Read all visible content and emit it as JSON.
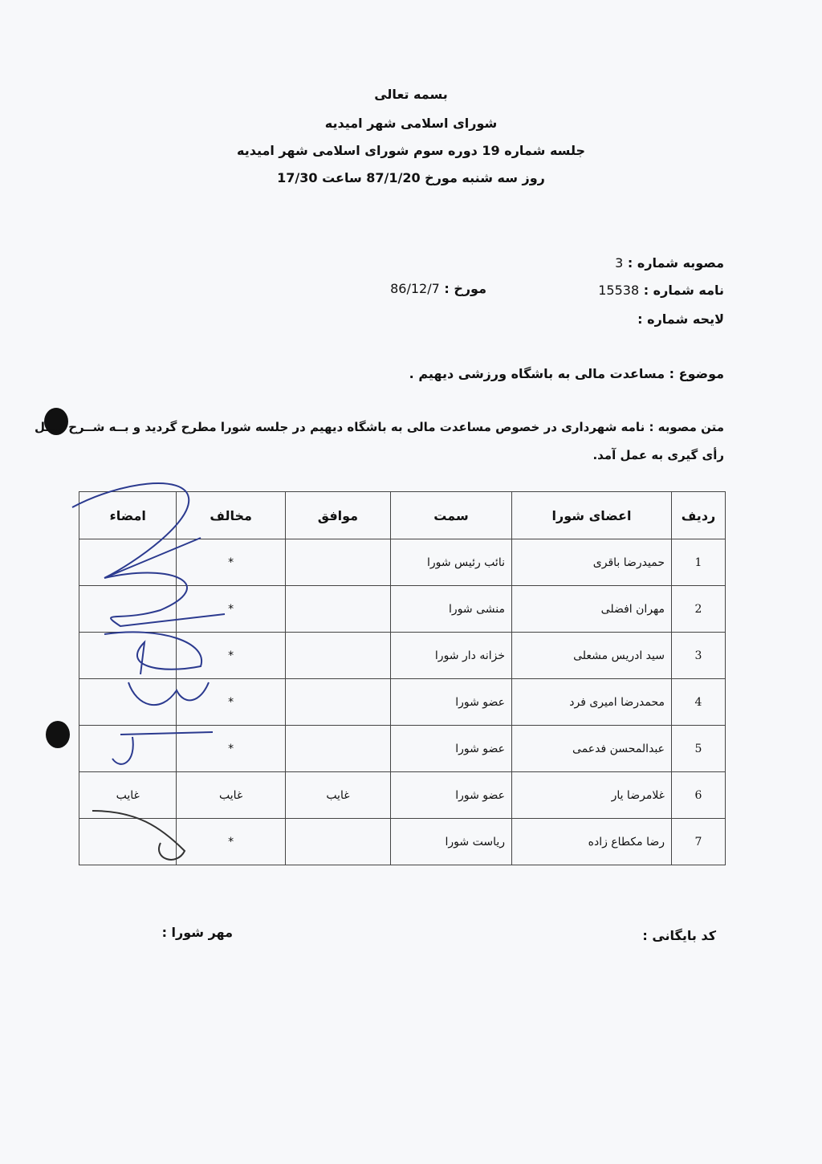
{
  "header": {
    "line1": "بسمه تعالی",
    "line2": "شورای اسلامی شهر امیدیه",
    "line3": "جلسه شماره 19 دوره سوم شورای اسلامی شهر امیدیه",
    "line4": "روز سه شنبه مورخ 87/1/20 ساعت 17/30"
  },
  "fields": {
    "resolution_label": "مصوبه شماره :",
    "resolution_value": "3",
    "letter_label": "نامه شماره :",
    "letter_value": "15538",
    "date_label": "مورخ :",
    "date_value": "86/12/7",
    "bill_label": "لایحه شماره :",
    "subject_label": "موضوع :",
    "subject_value": "مساعدت مالی به باشگاه ورزشی دیهیم ."
  },
  "body": {
    "text_label": "متن مصوبه :",
    "line1": "نامه شهرداری در خصوص مساعدت مالی به باشگاه دیهیم در جلسه شورا مطرح گردید و بــه شــرح ذیــل",
    "line2": "رأی گیری به عمل آمد."
  },
  "table": {
    "headers": [
      "ردیف",
      "اعضای شورا",
      "سمت",
      "موافق",
      "مخالف",
      "امضاء"
    ],
    "rows": [
      {
        "num": "1",
        "name": "حمیدرضا باقری",
        "role": "نائب رئیس شورا",
        "agree": "",
        "disagree": "*",
        "sign": ""
      },
      {
        "num": "2",
        "name": "مهران افضلی",
        "role": "منشی شورا",
        "agree": "",
        "disagree": "*",
        "sign": ""
      },
      {
        "num": "3",
        "name": "سید ادریس مشعلی",
        "role": "خزانه دار شورا",
        "agree": "",
        "disagree": "*",
        "sign": ""
      },
      {
        "num": "4",
        "name": "محمدرضا امیری فرد",
        "role": "عضو شورا",
        "agree": "",
        "disagree": "*",
        "sign": ""
      },
      {
        "num": "5",
        "name": "عبدالمحسن فدعمی",
        "role": "عضو شورا",
        "agree": "",
        "disagree": "*",
        "sign": ""
      },
      {
        "num": "6",
        "name": "غلامرضا یار",
        "role": "عضو شورا",
        "agree": "غایب",
        "disagree": "غایب",
        "sign": "غایب"
      },
      {
        "num": "7",
        "name": "رضا مکطاع زاده",
        "role": "ریاست شورا",
        "agree": "",
        "disagree": "*",
        "sign": ""
      }
    ]
  },
  "footer": {
    "archive_label": "کد بایگانی :",
    "seal_label": "مهر شورا :"
  }
}
